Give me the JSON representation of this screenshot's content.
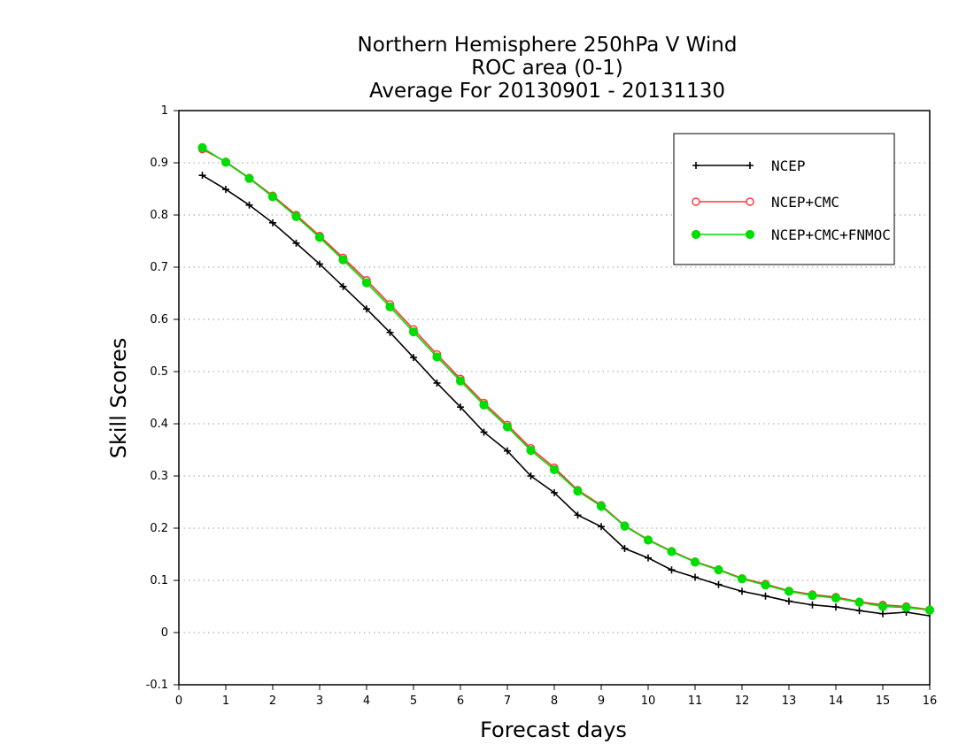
{
  "chart_data": {
    "type": "line",
    "title_lines": [
      "Northern Hemisphere 250hPa V Wind",
      "ROC area (0-1)",
      "Average For 20130901 - 20131130"
    ],
    "xlabel": "Forecast days",
    "ylabel": "Skill Scores",
    "xlim": [
      0,
      16
    ],
    "ylim": [
      -0.1,
      1
    ],
    "x_ticks": [
      "0",
      "1",
      "2",
      "3",
      "4",
      "5",
      "6",
      "7",
      "8",
      "9",
      "10",
      "11",
      "12",
      "13",
      "14",
      "15",
      "16"
    ],
    "y_ticks": [
      "-0.1",
      "0",
      "0.1",
      "0.2",
      "0.3",
      "0.4",
      "0.5",
      "0.6",
      "0.7",
      "0.8",
      "0.9",
      "1"
    ],
    "grid": "horizontal dotted",
    "legend_position": "top-right",
    "x": [
      0.5,
      1,
      1.5,
      2,
      2.5,
      3,
      3.5,
      4,
      4.5,
      5,
      5.5,
      6,
      6.5,
      7,
      7.5,
      8,
      8.5,
      9,
      9.5,
      10,
      10.5,
      11,
      11.5,
      12,
      12.5,
      13,
      13.5,
      14,
      14.5,
      15,
      15.5,
      16
    ],
    "series": [
      {
        "name": "NCEP",
        "color": "#000000",
        "marker": "plus",
        "values": [
          0.876,
          0.849,
          0.819,
          0.785,
          0.746,
          0.706,
          0.663,
          0.62,
          0.575,
          0.527,
          0.478,
          0.432,
          0.384,
          0.348,
          0.3,
          0.268,
          0.225,
          0.203,
          0.161,
          0.143,
          0.12,
          0.106,
          0.092,
          0.079,
          0.07,
          0.06,
          0.053,
          0.049,
          0.042,
          0.036,
          0.039,
          0.032
        ]
      },
      {
        "name": "NCEP+CMC",
        "color": "#ff3333",
        "marker": "open-circle",
        "values": [
          0.926,
          0.902,
          0.871,
          0.837,
          0.8,
          0.76,
          0.718,
          0.675,
          0.629,
          0.581,
          0.533,
          0.486,
          0.44,
          0.398,
          0.353,
          0.316,
          0.273,
          0.244,
          0.205,
          0.178,
          0.156,
          0.136,
          0.121,
          0.104,
          0.093,
          0.08,
          0.073,
          0.068,
          0.059,
          0.053,
          0.05,
          0.044
        ]
      },
      {
        "name": "NCEP+CMC+FNMOC",
        "color": "#00dd00",
        "marker": "filled-circle",
        "values": [
          0.929,
          0.901,
          0.87,
          0.835,
          0.797,
          0.757,
          0.714,
          0.67,
          0.624,
          0.576,
          0.528,
          0.482,
          0.436,
          0.394,
          0.349,
          0.312,
          0.271,
          0.242,
          0.204,
          0.177,
          0.155,
          0.135,
          0.12,
          0.103,
          0.091,
          0.079,
          0.071,
          0.066,
          0.058,
          0.05,
          0.048,
          0.043
        ]
      }
    ]
  }
}
